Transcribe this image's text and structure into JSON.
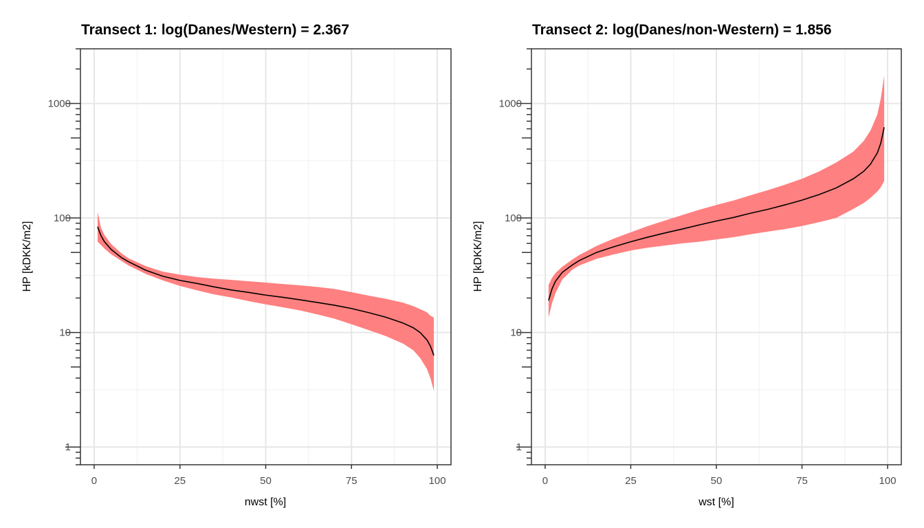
{
  "chart_data": [
    {
      "type": "area",
      "title": "Transect 1: log(Danes/Western) = 2.367",
      "xlabel": "nwst [%]",
      "ylabel": "HP [kDKK/m2]",
      "xlim": [
        -4,
        104
      ],
      "ylim": [
        0.7,
        3000
      ],
      "y_scale": "log",
      "x_ticks": [
        0,
        25,
        50,
        75,
        100
      ],
      "y_ticks": [
        1,
        10,
        100,
        1000
      ],
      "grid": true,
      "band_color": "#ff8080",
      "line_color": "#000000",
      "x": [
        1,
        2,
        3,
        5,
        8,
        10,
        15,
        20,
        25,
        30,
        35,
        40,
        45,
        50,
        55,
        60,
        65,
        70,
        75,
        80,
        85,
        90,
        93,
        95,
        97,
        98,
        99
      ],
      "y": [
        84,
        70,
        62,
        53,
        45,
        41.5,
        35,
        31,
        28.5,
        26.8,
        25,
        23.5,
        22.4,
        21.2,
        20.3,
        19.3,
        18.3,
        17.3,
        16.2,
        14.9,
        13.6,
        12.1,
        11,
        10,
        8.6,
        7.6,
        6.3
      ],
      "upper": [
        113,
        82,
        71,
        59,
        49,
        44.5,
        38,
        34,
        32,
        30.5,
        29.5,
        28.8,
        28,
        27.3,
        26.5,
        25.8,
        25,
        24,
        22.5,
        21,
        19.7,
        18.2,
        17,
        16,
        15,
        14,
        13.5
      ],
      "lower": [
        62,
        58,
        54,
        48,
        42,
        38.5,
        32.5,
        28.5,
        25.5,
        23.3,
        21.5,
        20.2,
        18.8,
        17.6,
        16.6,
        15.6,
        14.4,
        13.2,
        11.8,
        10.5,
        9.3,
        8,
        7,
        6,
        4.8,
        4,
        3.1
      ]
    },
    {
      "type": "area",
      "title": "Transect 2: log(Danes/non-Western) = 1.856",
      "xlabel": "wst [%]",
      "ylabel": "HP [kDKK/m2]",
      "xlim": [
        -4,
        104
      ],
      "ylim": [
        0.7,
        3000
      ],
      "y_scale": "log",
      "x_ticks": [
        0,
        25,
        50,
        75,
        100
      ],
      "y_ticks": [
        1,
        10,
        100,
        1000
      ],
      "grid": true,
      "band_color": "#ff8080",
      "line_color": "#000000",
      "x": [
        1,
        2,
        3,
        5,
        8,
        10,
        15,
        20,
        25,
        30,
        35,
        40,
        45,
        50,
        55,
        60,
        65,
        70,
        75,
        80,
        85,
        90,
        93,
        95,
        97,
        98,
        99
      ],
      "y": [
        19,
        24,
        28,
        33.5,
        39,
        42.5,
        50,
        56,
        62,
        68,
        74,
        80,
        87,
        94,
        101,
        110,
        119,
        130,
        143,
        160,
        183,
        220,
        255,
        295,
        370,
        450,
        620
      ],
      "upper": [
        26,
        30,
        33,
        37.5,
        43.5,
        47.5,
        57,
        66,
        75,
        85,
        95,
        106,
        118,
        130,
        142,
        158,
        175,
        195,
        220,
        255,
        305,
        380,
        470,
        580,
        800,
        1100,
        1750
      ],
      "lower": [
        13.5,
        18,
        22,
        29,
        35.5,
        38.5,
        44,
        48,
        52,
        55,
        57.5,
        60,
        62,
        65,
        68,
        72,
        76,
        80,
        85,
        92,
        100,
        120,
        135,
        150,
        170,
        185,
        210
      ]
    }
  ]
}
